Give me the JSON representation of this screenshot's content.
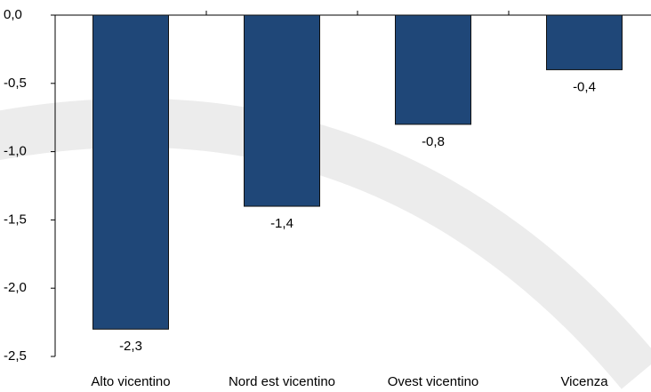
{
  "chart_data": {
    "type": "bar",
    "categories": [
      "Alto vicentino",
      "Nord est vicentino",
      "Ovest vicentino",
      "Vicenza"
    ],
    "values": [
      -2.3,
      -1.4,
      -0.8,
      -0.4
    ],
    "value_labels": [
      "-2,3",
      "-1,4",
      "-0,8",
      "-0,4"
    ],
    "color": "#1f4778",
    "ylim": [
      -2.5,
      0
    ],
    "yticks": [
      {
        "value": 0,
        "label": "0,0"
      },
      {
        "value": -0.5,
        "label": "-0,5"
      },
      {
        "value": -1,
        "label": "-1,0"
      },
      {
        "value": -1.5,
        "label": "-1,5"
      },
      {
        "value": -2,
        "label": "-2,0"
      },
      {
        "value": -2.5,
        "label": "-2,5"
      }
    ],
    "grid": false
  }
}
